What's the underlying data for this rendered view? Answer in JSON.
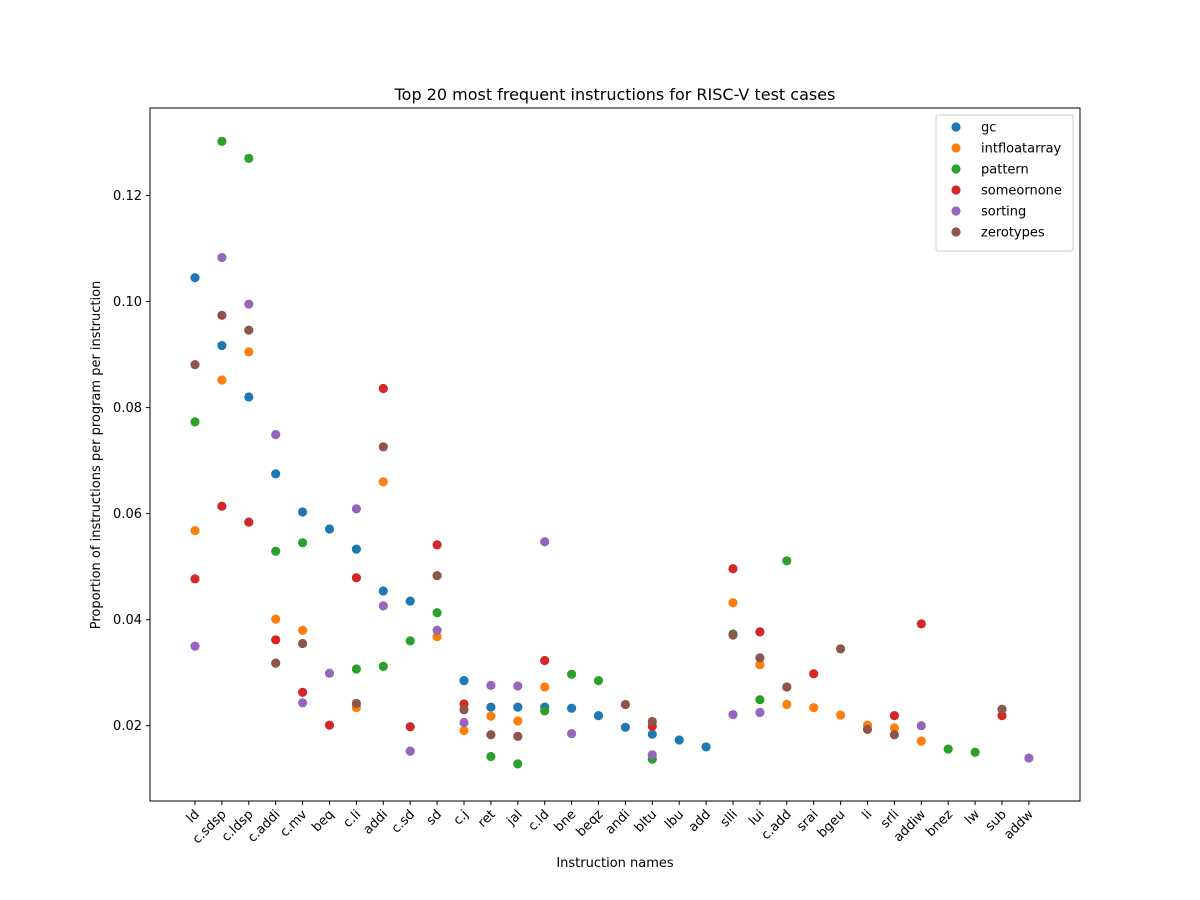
{
  "chart_data": {
    "type": "scatter",
    "title": "Top 20 most frequent instructions for RISC-V test cases",
    "xlabel": "Instruction names",
    "ylabel": "Proportion of instructions per program per instruction",
    "ylim": [
      0.0058,
      0.1365
    ],
    "yticks": [
      "0.02",
      "0.04",
      "0.06",
      "0.08",
      "0.10",
      "0.12"
    ],
    "ytick_values": [
      0.02,
      0.04,
      0.06,
      0.08,
      0.1,
      0.12
    ],
    "grid": false,
    "legend_position": "top-right",
    "categories": [
      "ld",
      "c.sdsp",
      "c.ldsp",
      "c.addi",
      "c.mv",
      "beq",
      "c.li",
      "addi",
      "c.sd",
      "sd",
      "c.j",
      "ret",
      "jal",
      "c.ld",
      "bne",
      "beqz",
      "andi",
      "bltu",
      "lbu",
      "add",
      "slli",
      "lui",
      "c.add",
      "srai",
      "bgeu",
      "li",
      "srli",
      "addiw",
      "bnez",
      "lw",
      "sub",
      "addw"
    ],
    "series": [
      {
        "name": "gc",
        "color": "#1f77b4",
        "points": [
          [
            "ld",
            0.1045
          ],
          [
            "c.sdsp",
            0.0917
          ],
          [
            "c.ldsp",
            0.082
          ],
          [
            "c.addi",
            0.0675
          ],
          [
            "c.mv",
            0.0603
          ],
          [
            "beq",
            0.0571
          ],
          [
            "c.li",
            0.0533
          ],
          [
            "addi",
            0.0454
          ],
          [
            "c.sd",
            0.0435
          ],
          [
            "c.j",
            0.0285
          ],
          [
            "ret",
            0.0235
          ],
          [
            "jal",
            0.0235
          ],
          [
            "c.ld",
            0.0235
          ],
          [
            "bne",
            0.0233
          ],
          [
            "beqz",
            0.0219
          ],
          [
            "andi",
            0.0197
          ],
          [
            "bltu",
            0.0184
          ],
          [
            "lbu",
            0.0173
          ],
          [
            "add",
            0.016
          ]
        ]
      },
      {
        "name": "intfloatarray",
        "color": "#ff7f0e",
        "points": [
          [
            "ld",
            0.0568
          ],
          [
            "c.sdsp",
            0.0852
          ],
          [
            "c.ldsp",
            0.0905
          ],
          [
            "c.addi",
            0.0401
          ],
          [
            "c.mv",
            0.038
          ],
          [
            "c.li",
            0.0234
          ],
          [
            "addi",
            0.066
          ],
          [
            "sd",
            0.0368
          ],
          [
            "c.j",
            0.0191
          ],
          [
            "ret",
            0.0218
          ],
          [
            "jal",
            0.0209
          ],
          [
            "c.ld",
            0.0273
          ],
          [
            "slli",
            0.0432
          ],
          [
            "lui",
            0.0315
          ],
          [
            "c.add",
            0.024
          ],
          [
            "srai",
            0.0234
          ],
          [
            "bgeu",
            0.022
          ],
          [
            "li",
            0.0201
          ],
          [
            "srli",
            0.0196
          ],
          [
            "addiw",
            0.0171
          ]
        ]
      },
      {
        "name": "pattern",
        "color": "#2ca02c",
        "points": [
          [
            "ld",
            0.0773
          ],
          [
            "c.sdsp",
            0.1302
          ],
          [
            "c.ldsp",
            0.127
          ],
          [
            "c.addi",
            0.0529
          ],
          [
            "c.mv",
            0.0545
          ],
          [
            "c.li",
            0.0307
          ],
          [
            "addi",
            0.0312
          ],
          [
            "c.sd",
            0.036
          ],
          [
            "sd",
            0.0413
          ],
          [
            "ret",
            0.0142
          ],
          [
            "jal",
            0.0128
          ],
          [
            "c.ld",
            0.0228
          ],
          [
            "bne",
            0.0297
          ],
          [
            "beqz",
            0.0285
          ],
          [
            "bltu",
            0.0137
          ],
          [
            "slli",
            0.0373
          ],
          [
            "lui",
            0.0249
          ],
          [
            "c.add",
            0.0511
          ],
          [
            "bnez",
            0.0156
          ],
          [
            "lw",
            0.015
          ]
        ]
      },
      {
        "name": "someornone",
        "color": "#d62728",
        "points": [
          [
            "ld",
            0.0477
          ],
          [
            "c.sdsp",
            0.0614
          ],
          [
            "c.ldsp",
            0.0584
          ],
          [
            "c.addi",
            0.0362
          ],
          [
            "c.mv",
            0.0263
          ],
          [
            "beq",
            0.0201
          ],
          [
            "c.li",
            0.0479
          ],
          [
            "addi",
            0.0836
          ],
          [
            "c.sd",
            0.0198
          ],
          [
            "sd",
            0.0541
          ],
          [
            "c.j",
            0.0241
          ],
          [
            "c.ld",
            0.0323
          ],
          [
            "bltu",
            0.0199
          ],
          [
            "slli",
            0.0496
          ],
          [
            "lui",
            0.0377
          ],
          [
            "srai",
            0.0298
          ],
          [
            "srli",
            0.0219
          ],
          [
            "addiw",
            0.0392
          ],
          [
            "sub",
            0.0219
          ]
        ]
      },
      {
        "name": "sorting",
        "color": "#9467bd",
        "points": [
          [
            "ld",
            0.035
          ],
          [
            "c.sdsp",
            0.1083
          ],
          [
            "c.ldsp",
            0.0995
          ],
          [
            "c.addi",
            0.0749
          ],
          [
            "c.mv",
            0.0243
          ],
          [
            "beq",
            0.0299
          ],
          [
            "c.li",
            0.0609
          ],
          [
            "addi",
            0.0426
          ],
          [
            "c.sd",
            0.0152
          ],
          [
            "sd",
            0.038
          ],
          [
            "c.j",
            0.0206
          ],
          [
            "ret",
            0.0276
          ],
          [
            "jal",
            0.0275
          ],
          [
            "c.ld",
            0.0547
          ],
          [
            "bne",
            0.0185
          ],
          [
            "bltu",
            0.0145
          ],
          [
            "slli",
            0.0221
          ],
          [
            "lui",
            0.0225
          ],
          [
            "addiw",
            0.02
          ],
          [
            "addw",
            0.0139
          ]
        ]
      },
      {
        "name": "zerotypes",
        "color": "#8c564b",
        "points": [
          [
            "ld",
            0.0881
          ],
          [
            "c.sdsp",
            0.0974
          ],
          [
            "c.ldsp",
            0.0946
          ],
          [
            "c.addi",
            0.0318
          ],
          [
            "c.mv",
            0.0355
          ],
          [
            "c.li",
            0.0242
          ],
          [
            "addi",
            0.0726
          ],
          [
            "sd",
            0.0483
          ],
          [
            "c.j",
            0.023
          ],
          [
            "ret",
            0.0183
          ],
          [
            "jal",
            0.018
          ],
          [
            "andi",
            0.024
          ],
          [
            "bltu",
            0.0208
          ],
          [
            "slli",
            0.0371
          ],
          [
            "lui",
            0.0328
          ],
          [
            "c.add",
            0.0273
          ],
          [
            "bgeu",
            0.0345
          ],
          [
            "li",
            0.0193
          ],
          [
            "srli",
            0.0183
          ],
          [
            "sub",
            0.0231
          ]
        ]
      }
    ]
  }
}
